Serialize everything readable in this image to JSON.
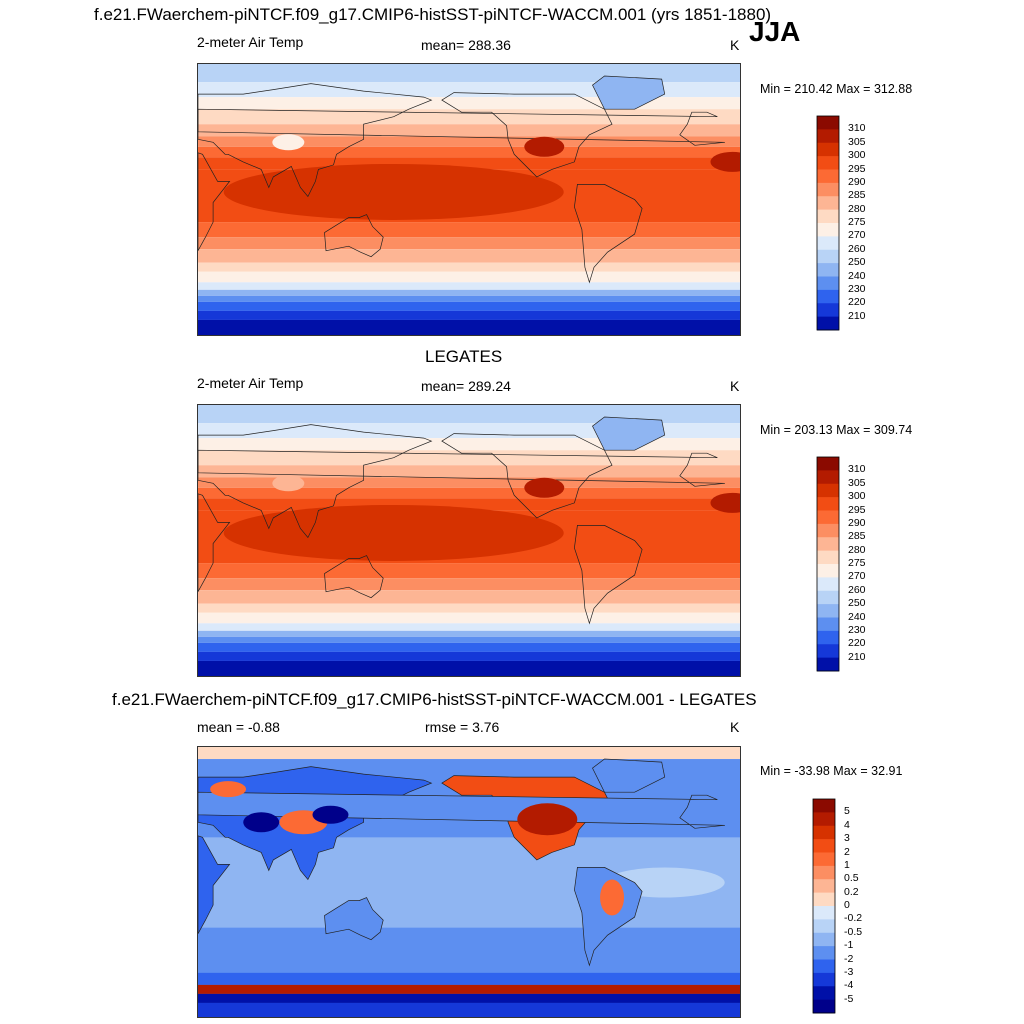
{
  "season": "JJA",
  "panels": [
    {
      "title": "f.e21.FWaerchem-piNTCF.f09_g17.CMIP6-histSST-piNTCF-WACCM.001 (yrs 1851-1880)",
      "left": "2-meter Air Temp",
      "center": "mean= 288.36",
      "units": "K",
      "minmax": "Min = 210.42 Max = 312.88",
      "kind": "model"
    },
    {
      "title": "LEGATES",
      "left": "2-meter Air Temp",
      "center": "mean= 289.24",
      "units": "K",
      "minmax": "Min = 203.13 Max = 309.74",
      "kind": "obs"
    },
    {
      "title": "f.e21.FWaerchem-piNTCF.f09_g17.CMIP6-histSST-piNTCF-WACCM.001 - LEGATES",
      "left": "mean =  -0.88",
      "center": "rmse =   3.76",
      "units": "K",
      "minmax": "Min = -33.98 Max =  32.91",
      "kind": "diff"
    }
  ],
  "colorbars": {
    "temp": {
      "labels": [
        "310",
        "305",
        "300",
        "295",
        "290",
        "285",
        "280",
        "275",
        "270",
        "260",
        "250",
        "240",
        "230",
        "220",
        "210"
      ],
      "colors": [
        "#8b0a00",
        "#b31b00",
        "#d63200",
        "#f24d14",
        "#fc6a34",
        "#fc8e62",
        "#fdb594",
        "#fedac3",
        "#fdf0e6",
        "#dbe9fa",
        "#b8d3f6",
        "#8fb5f2",
        "#5d8ff0",
        "#2f63ee",
        "#1538d8",
        "#0010a8"
      ]
    },
    "diff": {
      "labels": [
        "5",
        "4",
        "3",
        "2",
        "1",
        "0.5",
        "0.2",
        "0",
        "-0.2",
        "-0.5",
        "-1",
        "-2",
        "-3",
        "-4",
        "-5"
      ],
      "colors": [
        "#8b0a00",
        "#b31b00",
        "#d63200",
        "#f24d14",
        "#fc6a34",
        "#fc8e62",
        "#fdb594",
        "#fedac3",
        "#dbe9fa",
        "#b8d3f6",
        "#8fb5f2",
        "#5d8ff0",
        "#2f63ee",
        "#1538d8",
        "#0010a8",
        "#00008a"
      ]
    }
  }
}
